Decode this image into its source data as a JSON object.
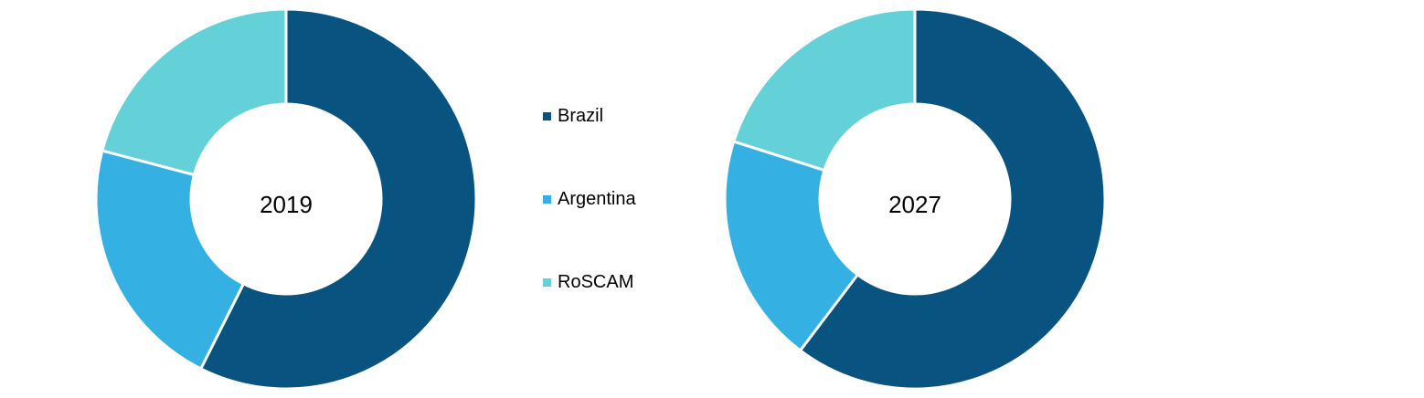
{
  "chart_data": {
    "type": "pie",
    "categories": [
      "Brazil",
      "Argentina",
      "RoSCAM"
    ],
    "colors": [
      "#08537f",
      "#35b0e2",
      "#64d0d8"
    ],
    "legend_position": "center",
    "charts": [
      {
        "center_label": "2019",
        "values": [
          57.4,
          21.7,
          20.9
        ]
      },
      {
        "center_label": "2027",
        "values": [
          60.3,
          19.6,
          20.1
        ]
      }
    ]
  }
}
